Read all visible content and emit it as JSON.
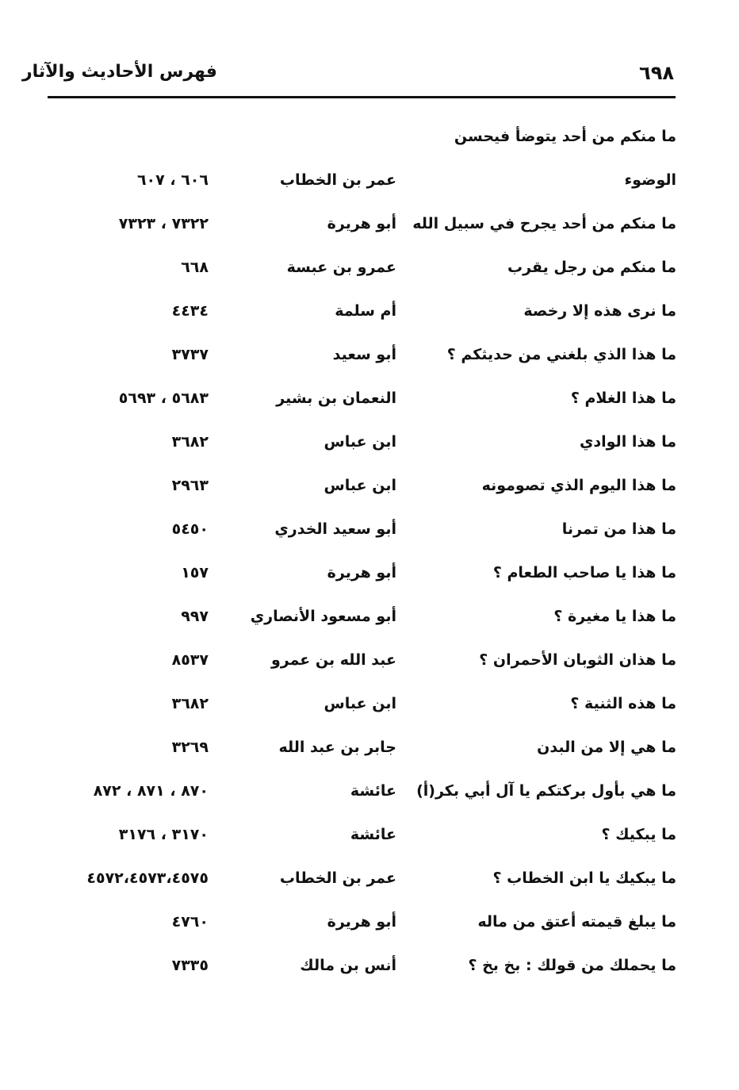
{
  "header": {
    "page_number": "٦٩٨",
    "title": "فهرس الأحاديث والآثار"
  },
  "entries": [
    {
      "text_line1": "ما منكم من أحد يتوضأ فيحسن",
      "text": "الوضوء",
      "narrator": "عمر بن الخطاب",
      "refs": "٦٠٦ ، ٦٠٧"
    },
    {
      "text": "ما منكم من أحد يجرح في سبيل الله",
      "narrator": "أبو هريرة",
      "refs": "٧٣٢٢ ، ٧٣٢٣"
    },
    {
      "text": "ما منكم من رجل يقرب",
      "narrator": "عمرو بن عبسة",
      "refs": "٦٦٨"
    },
    {
      "text": "ما نرى هذه إلا رخصة",
      "narrator": "أم سلمة",
      "refs": "٤٤٣٤"
    },
    {
      "text": "ما هذا الذي بلغني من حديثكم ؟",
      "narrator": "أبو سعيد",
      "refs": "٣٧٣٧"
    },
    {
      "text": "ما هذا الغلام ؟",
      "narrator": "النعمان بن بشير",
      "refs": "٥٦٨٣ ، ٥٦٩٣"
    },
    {
      "text": "ما هذا الوادي",
      "narrator": "ابن عباس",
      "refs": "٣٦٨٢"
    },
    {
      "text": "ما هذا اليوم الذي تصومونه",
      "narrator": "ابن عباس",
      "refs": "٢٩٦٣"
    },
    {
      "text": "ما هذا من تمرنا",
      "narrator": "أبو سعيد الخدري",
      "refs": "٥٤٥٠"
    },
    {
      "text": "ما هذا يا صاحب الطعام ؟",
      "narrator": "أبو هريرة",
      "refs": "١٥٧"
    },
    {
      "text": "ما هذا يا مغيرة ؟",
      "narrator": "أبو مسعود الأنصاري",
      "refs": "٩٩٧"
    },
    {
      "text": "ما هذان الثوبان الأحمران ؟",
      "narrator": "عبد الله بن عمرو",
      "refs": "٨٥٣٧"
    },
    {
      "text": "ما هذه الثنية ؟",
      "narrator": "ابن عباس",
      "refs": "٣٦٨٢"
    },
    {
      "text": "ما هي إلا من البدن",
      "narrator": "جابر بن عبد الله",
      "refs": "٣٢٦٩"
    },
    {
      "text": "ما هي بأول بركتكم يا آل أبي بكر(أ)",
      "narrator": "عائشة",
      "refs": "٨٧٠ ، ٨٧١ ، ٨٧٢"
    },
    {
      "text": "ما يبكيك ؟",
      "narrator": "عائشة",
      "refs": "٣١٧٠ ، ٣١٧٦"
    },
    {
      "text": "ما يبكيك يا ابن الخطاب ؟",
      "narrator": "عمر بن الخطاب",
      "refs": "٤٥٧٢،٤٥٧٣،٤٥٧٥"
    },
    {
      "text": "ما يبلغ قيمته أعتق من ماله",
      "narrator": "أبو هريرة",
      "refs": "٤٧٦٠"
    },
    {
      "text": "ما يحملك من قولك : بخ بخ ؟",
      "narrator": "أنس بن مالك",
      "refs": "٧٣٣٥"
    }
  ]
}
